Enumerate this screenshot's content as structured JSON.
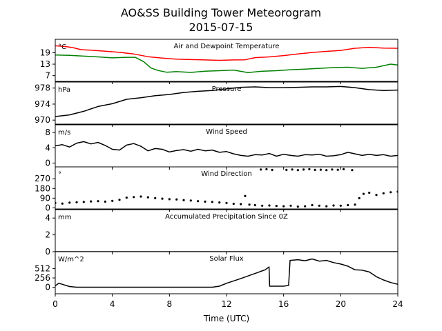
{
  "chart_data": {
    "type": "line",
    "title": "AO&SS Building Tower Meteorogram",
    "subtitle": "2015-07-15",
    "xlabel": "Time (UTC)",
    "xlim": [
      0,
      24
    ],
    "xticks": [
      0,
      4,
      8,
      12,
      16,
      20,
      24
    ],
    "panels": [
      {
        "title": "Air and Dewpoint Temperature",
        "unit": "°C",
        "ylim": [
          4,
          26
        ],
        "yticks": [
          7,
          13,
          19
        ],
        "series": [
          {
            "color": "#ff0000",
            "style": "line",
            "x": [
              0,
              0.7,
              1.2,
              1.8,
              2.5,
              3.5,
              4.5,
              5.5,
              6.5,
              7.5,
              8.5,
              9.5,
              10.5,
              11.5,
              12.5,
              13.3,
              14,
              15,
              16,
              17,
              18,
              19,
              20,
              21,
              22,
              23,
              24
            ],
            "y": [
              22.6,
              22.2,
              21.7,
              20.6,
              20.3,
              19.8,
              19.2,
              18.3,
              16.9,
              16.2,
              15.6,
              15.4,
              15.2,
              15.0,
              15.2,
              15.3,
              16.4,
              16.8,
              17.5,
              18.3,
              19.1,
              19.7,
              20.2,
              21.3,
              21.8,
              21.4,
              21.3
            ]
          },
          {
            "color": "#008000",
            "style": "line",
            "x": [
              0,
              1,
              2,
              3,
              4,
              5,
              5.6,
              6.2,
              6.7,
              7.2,
              7.8,
              8.5,
              9.5,
              10.5,
              11.5,
              12.5,
              13.5,
              14.5,
              15.5,
              16.5,
              17.5,
              18.5,
              19.5,
              20.5,
              21.5,
              22.5,
              23.5,
              24
            ],
            "y": [
              17.8,
              17.6,
              17.2,
              16.8,
              16.3,
              16.6,
              16.6,
              14.3,
              11.0,
              9.7,
              8.8,
              9.1,
              8.7,
              9.3,
              9.6,
              9.9,
              8.6,
              9.3,
              9.6,
              10.1,
              10.4,
              10.8,
              11.2,
              11.4,
              10.8,
              11.4,
              13.0,
              12.6
            ]
          }
        ]
      },
      {
        "title": "Pressure",
        "unit": "hPa",
        "ylim": [
          969,
          979.5
        ],
        "yticks": [
          970,
          974,
          978
        ],
        "series": [
          {
            "color": "#000000",
            "style": "line",
            "x": [
              0,
              1,
              2,
              3,
              4,
              5,
              6,
              7,
              8,
              9,
              10,
              11,
              12,
              13,
              14,
              15,
              16,
              17,
              18,
              19,
              20,
              21,
              22,
              23,
              24
            ],
            "y": [
              970.9,
              971.3,
              972.2,
              973.4,
              974.1,
              975.2,
              975.6,
              976.1,
              976.4,
              976.9,
              977.2,
              977.4,
              977.8,
              978.2,
              978.3,
              978.1,
              978.1,
              978.2,
              978.3,
              978.3,
              978.4,
              978.1,
              977.6,
              977.4,
              977.5
            ]
          }
        ]
      },
      {
        "title": "Wind Speed",
        "unit": "m/s",
        "ylim": [
          -1,
          10
        ],
        "yticks": [
          0,
          4,
          8
        ],
        "series": [
          {
            "color": "#000000",
            "style": "line",
            "x": [
              0,
              0.5,
              1,
              1.5,
              2,
              2.5,
              3,
              3.5,
              4,
              4.5,
              5,
              5.5,
              6,
              6.5,
              7,
              7.5,
              8,
              8.5,
              9,
              9.5,
              10,
              10.5,
              11,
              11.5,
              12,
              12.5,
              13,
              13.5,
              14,
              14.5,
              15,
              15.5,
              16,
              16.5,
              17,
              17.5,
              18,
              18.5,
              19,
              19.5,
              20,
              20.5,
              21,
              21.5,
              22,
              22.5,
              23,
              23.5,
              24
            ],
            "y": [
              4.5,
              4.8,
              4.2,
              5.2,
              5.6,
              5.0,
              5.4,
              4.6,
              3.6,
              3.4,
              4.7,
              5.1,
              4.4,
              3.2,
              3.8,
              3.6,
              2.9,
              3.3,
              3.5,
              3.1,
              3.6,
              3.2,
              3.4,
              2.8,
              3.0,
              2.4,
              2.0,
              1.8,
              2.2,
              2.1,
              2.5,
              1.8,
              2.3,
              2.0,
              1.8,
              2.2,
              2.1,
              2.3,
              1.8,
              1.9,
              2.2,
              2.8,
              2.4,
              2.0,
              2.3,
              2.0,
              2.2,
              1.8,
              2.0
            ]
          }
        ]
      },
      {
        "title": "Wind Direction",
        "unit": "°",
        "ylim": [
          -10,
          380
        ],
        "yticks": [
          0,
          90,
          180,
          270
        ],
        "series": [
          {
            "color": "#000000",
            "style": "dots",
            "x": [
              0,
              0.5,
              1,
              1.5,
              2,
              2.5,
              3,
              3.5,
              4,
              4.5,
              5,
              5.5,
              6,
              6.5,
              7,
              7.5,
              8,
              8.5,
              9,
              9.5,
              10,
              10.5,
              11,
              11.5,
              12,
              12.5,
              13,
              13.3,
              13.6,
              14,
              14.5,
              15,
              15.5,
              16,
              16.5,
              17,
              17.5,
              18,
              18.5,
              19,
              19.5,
              20,
              20.5,
              21,
              21.3,
              21.6,
              22,
              22.5,
              23,
              23.5,
              24
            ],
            "y": [
              45,
              40,
              48,
              52,
              55,
              60,
              62,
              58,
              65,
              75,
              95,
              100,
              105,
              98,
              90,
              85,
              80,
              78,
              72,
              68,
              62,
              58,
              55,
              50,
              45,
              38,
              35,
              110,
              30,
              25,
              20,
              22,
              18,
              15,
              20,
              12,
              15,
              25,
              20,
              15,
              22,
              20,
              25,
              30,
              90,
              130,
              140,
              120,
              135,
              145,
              150
            ]
          },
          {
            "color": "#000000",
            "style": "dots",
            "x": [
              14.4,
              14.8,
              15.2,
              16.2,
              16.6,
              17,
              17.4,
              17.8,
              18.2,
              18.6,
              19,
              19.4,
              19.8,
              20.2,
              20.8
            ],
            "y": [
              355,
              358,
              352,
              352,
              356,
              350,
              355,
              358,
              352,
              354,
              350,
              356,
              353,
              358,
              350
            ]
          }
        ]
      },
      {
        "title": "Accumulated Precipitation Since 0Z",
        "unit": "mm",
        "ylim": [
          0,
          5
        ],
        "yticks": [
          0,
          2,
          4
        ],
        "series": [
          {
            "color": "#000000",
            "style": "line",
            "x": [
              0,
              24
            ],
            "y": [
              0,
              0
            ]
          }
        ]
      },
      {
        "title": "Solar Flux",
        "unit": "W/m^2",
        "ylim": [
          -180,
          980
        ],
        "yticks": [
          0,
          256,
          512
        ],
        "series": [
          {
            "color": "#000000",
            "style": "line",
            "x": [
              0,
              0.25,
              0.5,
              1,
              1.5,
              2,
              4,
              6,
              8,
              10,
              11,
              11.5,
              12,
              13,
              14,
              14.7,
              14.98,
              15.02,
              16,
              16.35,
              16.45,
              17,
              17.5,
              18,
              18.5,
              19,
              19.5,
              20,
              20.5,
              21,
              21.5,
              22,
              22.5,
              23,
              23.5,
              24
            ],
            "y": [
              40,
              110,
              80,
              20,
              0,
              0,
              0,
              0,
              0,
              0,
              0,
              30,
              110,
              240,
              380,
              480,
              560,
              30,
              30,
              50,
              740,
              760,
              730,
              780,
              720,
              740,
              680,
              640,
              580,
              480,
              470,
              420,
              290,
              200,
              130,
              80
            ]
          }
        ]
      }
    ]
  }
}
